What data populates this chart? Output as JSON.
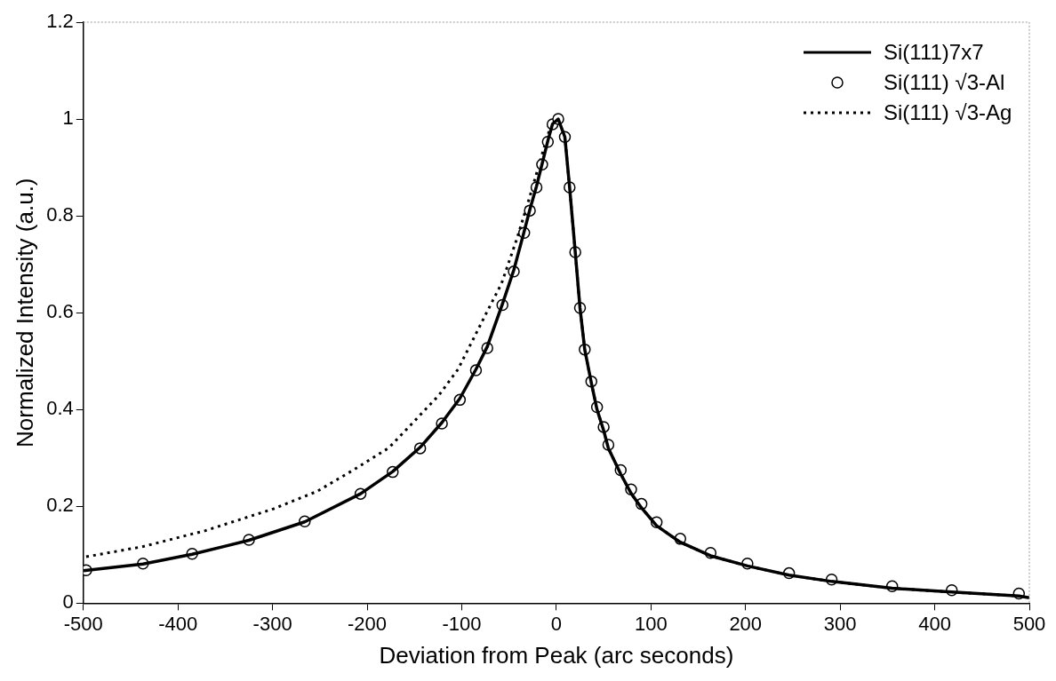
{
  "chart_data": {
    "type": "line",
    "xlabel": "Deviation from Peak (arc seconds)",
    "ylabel": "Normalized Intensity (a.u.)",
    "xlim": [
      -500,
      500
    ],
    "xticks": [
      -500,
      -400,
      -300,
      -200,
      -100,
      0,
      100,
      200,
      300,
      400,
      500
    ],
    "ylim": [
      0,
      1.2
    ],
    "yticks": [
      0,
      0.2,
      0.4,
      0.6,
      0.8,
      1,
      1.2
    ],
    "grid": false,
    "legend": "top right",
    "series": [
      {
        "name": "Si(111)7x7",
        "type": "line",
        "color": "#000000",
        "line_style": "solid",
        "marker": "none",
        "x": [
          -500,
          -437,
          -385,
          -325,
          -266,
          -207,
          -173,
          -144,
          -121,
          -102,
          -85,
          -73,
          -57,
          -45,
          -34,
          -28,
          -21,
          -15,
          -9,
          -4,
          2,
          9,
          14,
          20,
          25,
          30,
          37,
          43,
          50,
          55,
          68,
          79,
          90,
          106,
          131,
          163,
          202,
          246,
          291,
          355,
          418,
          489,
          500
        ],
        "values": [
          0.067,
          0.081,
          0.101,
          0.13,
          0.168,
          0.226,
          0.272,
          0.322,
          0.373,
          0.423,
          0.483,
          0.53,
          0.618,
          0.688,
          0.768,
          0.813,
          0.861,
          0.908,
          0.955,
          0.99,
          1.0,
          0.963,
          0.859,
          0.725,
          0.61,
          0.524,
          0.455,
          0.4,
          0.357,
          0.32,
          0.267,
          0.227,
          0.197,
          0.16,
          0.126,
          0.098,
          0.077,
          0.058,
          0.045,
          0.031,
          0.023,
          0.015,
          0.011
        ]
      },
      {
        "name": "Si(111) √3-Al",
        "type": "scatter",
        "color": "#000000",
        "marker": "circle",
        "x": [
          -497,
          -437,
          -385,
          -325,
          -266,
          -207,
          -173,
          -144,
          -121,
          -102,
          -85,
          -73,
          -57,
          -45,
          -34,
          -28,
          -21,
          -15,
          -9,
          -4,
          2,
          9,
          14,
          20,
          25,
          30,
          37,
          43,
          50,
          55,
          68,
          79,
          90,
          106,
          131,
          163,
          202,
          246,
          291,
          355,
          418,
          489
        ],
        "values": [
          0.068,
          0.082,
          0.102,
          0.131,
          0.169,
          0.226,
          0.271,
          0.32,
          0.371,
          0.42,
          0.481,
          0.527,
          0.616,
          0.685,
          0.765,
          0.811,
          0.859,
          0.906,
          0.953,
          0.989,
          1.0,
          0.963,
          0.859,
          0.725,
          0.61,
          0.524,
          0.458,
          0.405,
          0.364,
          0.327,
          0.275,
          0.235,
          0.205,
          0.167,
          0.133,
          0.104,
          0.082,
          0.062,
          0.049,
          0.035,
          0.027,
          0.02
        ]
      },
      {
        "name": "Si(111) √3-Ag",
        "type": "line",
        "color": "#000000",
        "line_style": "dotted",
        "marker": "none",
        "x": [
          -497,
          -437,
          -371,
          -299,
          -253,
          -213,
          -177,
          -154,
          -124,
          -104,
          -73,
          -58,
          -42,
          -28,
          -15,
          -7,
          2,
          9,
          14,
          20,
          25,
          30,
          37,
          43,
          50,
          55,
          68,
          79,
          90,
          106,
          131,
          163,
          202,
          246,
          291,
          355,
          418,
          489
        ],
        "values": [
          0.096,
          0.117,
          0.15,
          0.195,
          0.231,
          0.277,
          0.321,
          0.368,
          0.43,
          0.483,
          0.603,
          0.66,
          0.751,
          0.84,
          0.928,
          0.979,
          1.0,
          0.963,
          0.859,
          0.725,
          0.61,
          0.524,
          0.455,
          0.4,
          0.357,
          0.32,
          0.267,
          0.227,
          0.197,
          0.16,
          0.126,
          0.098,
          0.077,
          0.058,
          0.045,
          0.031,
          0.023,
          0.015
        ]
      }
    ]
  }
}
